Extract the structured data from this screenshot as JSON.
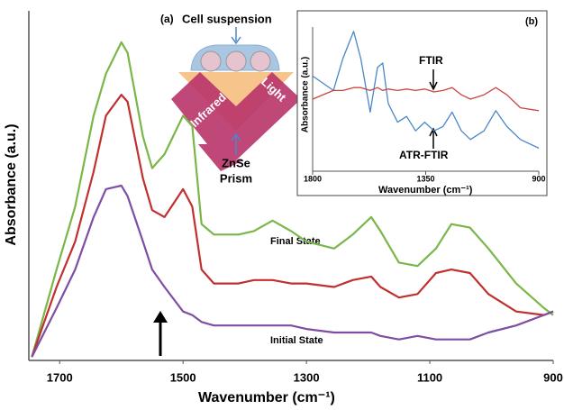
{
  "chart_data": [
    {
      "type": "line",
      "xlabel": "Wavenumber (cm⁻¹)",
      "ylabel": "Absorbance (a.u.)",
      "xlim": [
        1750,
        900
      ],
      "ylim": [
        0,
        1
      ],
      "xticks": [
        1700,
        1500,
        1300,
        1100,
        900
      ],
      "x": [
        1745,
        1705,
        1675,
        1645,
        1625,
        1600,
        1590,
        1565,
        1550,
        1530,
        1500,
        1485,
        1470,
        1450,
        1410,
        1385,
        1355,
        1325,
        1300,
        1255,
        1225,
        1195,
        1180,
        1150,
        1120,
        1090,
        1065,
        1035,
        1005,
        960,
        915,
        900
      ],
      "series": [
        {
          "name": "Final State",
          "color": "#7ab648",
          "values": [
            0.01,
            0.26,
            0.44,
            0.7,
            0.82,
            0.91,
            0.88,
            0.64,
            0.55,
            0.59,
            0.7,
            0.67,
            0.39,
            0.36,
            0.36,
            0.37,
            0.4,
            0.37,
            0.34,
            0.32,
            0.36,
            0.41,
            0.37,
            0.28,
            0.27,
            0.32,
            0.39,
            0.38,
            0.32,
            0.22,
            0.15,
            0.13
          ]
        },
        {
          "color": "#c0302e",
          "values": [
            0.01,
            0.21,
            0.34,
            0.54,
            0.7,
            0.76,
            0.74,
            0.52,
            0.43,
            0.41,
            0.49,
            0.44,
            0.26,
            0.22,
            0.22,
            0.23,
            0.23,
            0.22,
            0.22,
            0.21,
            0.23,
            0.24,
            0.21,
            0.18,
            0.19,
            0.25,
            0.26,
            0.25,
            0.19,
            0.14,
            0.13,
            0.14
          ]
        },
        {
          "name": "Initial State",
          "color": "#7d4ea3",
          "values": [
            0.01,
            0.15,
            0.26,
            0.41,
            0.49,
            0.5,
            0.47,
            0.34,
            0.26,
            0.21,
            0.14,
            0.13,
            0.11,
            0.1,
            0.1,
            0.1,
            0.1,
            0.1,
            0.09,
            0.08,
            0.08,
            0.08,
            0.07,
            0.06,
            0.07,
            0.06,
            0.06,
            0.06,
            0.08,
            0.1,
            0.13,
            0.14
          ]
        }
      ],
      "annotations": [
        "(a)",
        "Cell suspension",
        "Mid-Infrared",
        "Light",
        "ZnSe",
        "Prism"
      ]
    },
    {
      "type": "line",
      "title": "(b)",
      "xlabel": "Wavenumber (cm⁻¹)",
      "ylabel": "Absorbance (a.u.)",
      "xlim": [
        1800,
        900
      ],
      "ylim": [
        0,
        1
      ],
      "xticks": [
        1800,
        1350,
        900
      ],
      "x": [
        1800,
        1717,
        1680,
        1637,
        1608,
        1571,
        1542,
        1521,
        1499,
        1462,
        1426,
        1390,
        1354,
        1317,
        1281,
        1245,
        1208,
        1172,
        1118,
        1071,
        1027,
        973,
        900
      ],
      "series": [
        {
          "name": "ATR-FTIR",
          "color": "#4a86c8",
          "values": [
            0.66,
            0.56,
            0.78,
            0.97,
            0.78,
            0.41,
            0.72,
            0.75,
            0.47,
            0.34,
            0.38,
            0.28,
            0.34,
            0.28,
            0.31,
            0.41,
            0.28,
            0.22,
            0.28,
            0.42,
            0.31,
            0.22,
            0.16
          ]
        },
        {
          "name": "FTIR",
          "color": "#c9473f",
          "values": [
            0.5,
            0.56,
            0.56,
            0.58,
            0.58,
            0.56,
            0.58,
            0.56,
            0.57,
            0.56,
            0.57,
            0.56,
            0.57,
            0.55,
            0.56,
            0.58,
            0.53,
            0.5,
            0.53,
            0.58,
            0.53,
            0.44,
            0.42
          ]
        }
      ]
    }
  ]
}
